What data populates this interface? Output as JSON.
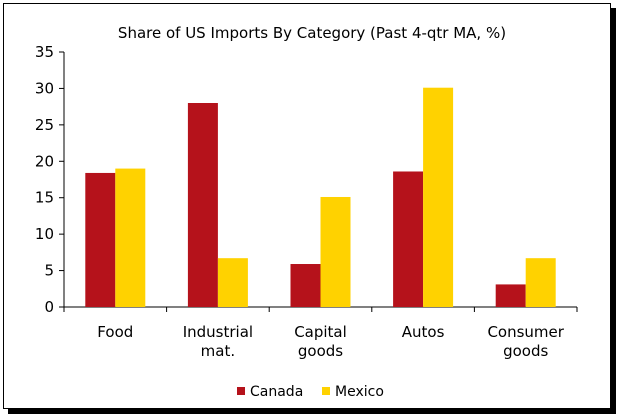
{
  "chart_data": {
    "type": "bar",
    "title": "Share of US Imports By Category (Past 4-qtr MA, %)",
    "xlabel": "",
    "ylabel": "",
    "categories": [
      [
        "Food"
      ],
      [
        "Industrial",
        "mat."
      ],
      [
        "Capital",
        "goods"
      ],
      [
        "Autos"
      ],
      [
        "Consumer",
        "goods"
      ]
    ],
    "series": [
      {
        "name": "Canada",
        "color": "#b5121b",
        "values": [
          18.4,
          28,
          5.9,
          18.6,
          3.1
        ]
      },
      {
        "name": "Mexico",
        "color": "#ffd200",
        "values": [
          19,
          6.7,
          15.1,
          30.1,
          6.7
        ]
      }
    ],
    "ylim": [
      0,
      35
    ],
    "yticks": [
      0,
      5,
      10,
      15,
      20,
      25,
      30,
      35
    ],
    "grid": false,
    "legend": "bottom"
  }
}
